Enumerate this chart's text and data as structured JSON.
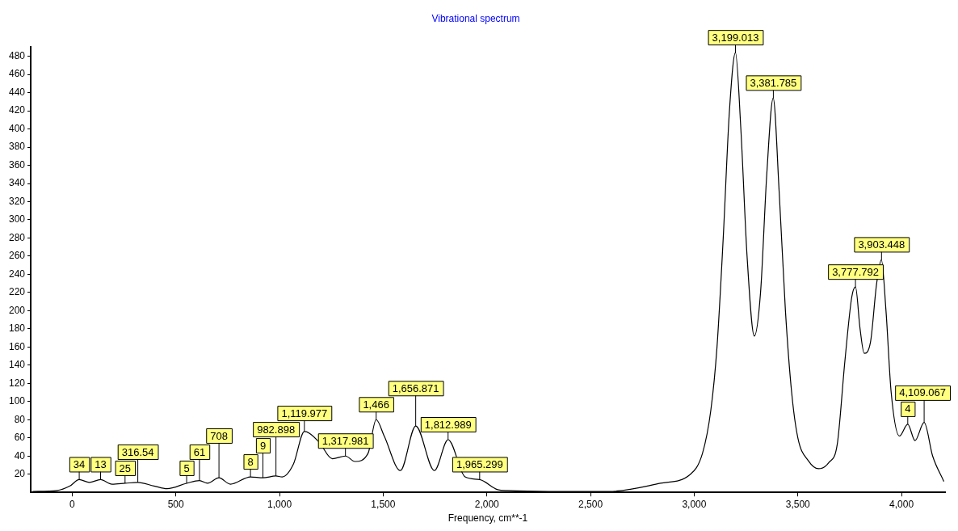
{
  "chart_data": {
    "type": "line",
    "title": "Vibrational spectrum",
    "xlabel": "Frequency, cm**-1",
    "x": [
      -190,
      -73,
      -11,
      34,
      83,
      137,
      192,
      255,
      316,
      395,
      458,
      552,
      614,
      653,
      708,
      763,
      860,
      920,
      982,
      1013,
      1067,
      1120,
      1145,
      1192,
      1255,
      1318,
      1364,
      1427,
      1466,
      1505,
      1583,
      1657,
      1747,
      1813,
      1895,
      1965,
      2052,
      2100,
      2300,
      2587,
      2837,
      2982,
      3040,
      3080,
      3110,
      3140,
      3170,
      3199,
      3225,
      3255,
      3290,
      3320,
      3350,
      3381,
      3410,
      3440,
      3470,
      3500,
      3550,
      3600,
      3650,
      3690,
      3727,
      3760,
      3778,
      3800,
      3820,
      3850,
      3880,
      3903,
      3925,
      3950,
      3990,
      4030,
      4065,
      4109,
      4150,
      4204
    ],
    "series": [
      {
        "color": "#000000",
        "values": [
          1,
          2,
          7,
          14,
          11,
          14,
          9,
          10,
          11,
          7,
          4,
          10,
          13,
          10,
          16,
          9,
          17,
          16,
          18,
          17,
          31,
          67,
          65,
          55,
          37,
          40,
          34,
          43,
          80,
          62,
          24,
          73,
          24,
          58,
          17,
          14,
          3,
          2,
          1,
          1,
          10,
          20,
          43,
          90,
          160,
          280,
          420,
          484,
          400,
          260,
          172,
          220,
          350,
          434,
          330,
          200,
          110,
          60,
          35,
          26,
          33,
          53,
          145,
          215,
          226,
          180,
          153,
          165,
          230,
          256,
          200,
          110,
          62,
          75,
          57,
          77,
          40,
          12
        ]
      }
    ],
    "xlim": [
      -200,
      4210
    ],
    "xticks": [
      0,
      500,
      {
        "value": 1000,
        "label": "1,000"
      },
      {
        "value": 1500,
        "label": "1,500"
      },
      {
        "value": 2000,
        "label": "2,000"
      },
      {
        "value": 2500,
        "label": "2,500"
      },
      {
        "value": 3000,
        "label": "3,000"
      },
      {
        "value": 3500,
        "label": "3,500"
      },
      {
        "value": 4000,
        "label": "4,000"
      }
    ],
    "ylim": [
      0,
      490
    ],
    "yticks": [
      20,
      40,
      60,
      80,
      100,
      120,
      140,
      160,
      180,
      200,
      220,
      240,
      260,
      280,
      300,
      320,
      340,
      360,
      380,
      400,
      420,
      440,
      460,
      480
    ],
    "grid": false,
    "legend": false,
    "marker": "none",
    "line_style": "solid",
    "annotations": [
      {
        "text": "34",
        "x": 34,
        "y": 14
      },
      {
        "text": "13",
        "x": 137,
        "y": 14
      },
      {
        "text": "25",
        "x": 255,
        "y": 10
      },
      {
        "text": "316.54",
        "x": 316.54,
        "y": 11
      },
      {
        "text": "5",
        "x": 552,
        "y": 10
      },
      {
        "text": "61",
        "x": 614,
        "y": 13
      },
      {
        "text": "708",
        "x": 708,
        "y": 16
      },
      {
        "text": "8",
        "x": 860,
        "y": 17
      },
      {
        "text": "9",
        "x": 920,
        "y": 16
      },
      {
        "text": "982.898",
        "x": 982.898,
        "y": 18
      },
      {
        "text": "1,119.977",
        "x": 1119.977,
        "y": 67
      },
      {
        "text": "1,317.981",
        "x": 1317.981,
        "y": 40
      },
      {
        "text": "1,466",
        "x": 1466,
        "y": 80
      },
      {
        "text": "1,656.871",
        "x": 1656.871,
        "y": 73
      },
      {
        "text": "1,812.989",
        "x": 1812.989,
        "y": 58
      },
      {
        "text": "1,965.299",
        "x": 1965.299,
        "y": 14
      },
      {
        "text": "3,199.013",
        "x": 3199.013,
        "y": 484
      },
      {
        "text": "3,381.785",
        "x": 3381.785,
        "y": 434
      },
      {
        "text": "3,777.792",
        "x": 3777.792,
        "y": 226
      },
      {
        "text": "3,903.448",
        "x": 3903.448,
        "y": 256
      },
      {
        "text": "4",
        "x": 4030,
        "y": 75
      },
      {
        "text": "4,109.067",
        "x": 4109.067,
        "y": 77
      }
    ]
  }
}
